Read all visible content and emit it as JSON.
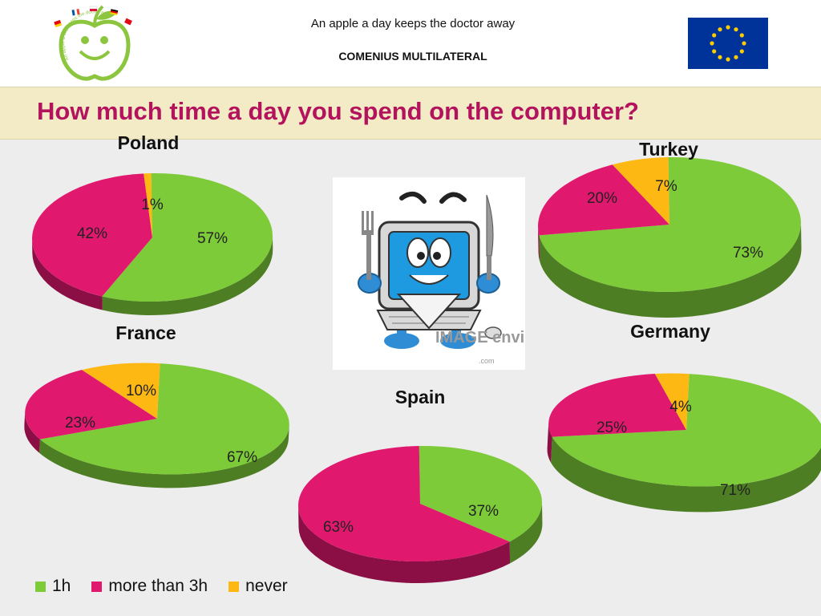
{
  "header": {
    "motto": "An apple a day keeps the doctor away",
    "project": "COMENIUS MULTILATERAL",
    "logo_arc_text": "An apple a day keeps the doctor away"
  },
  "question": "How much time a day you spend on the computer?",
  "colors": {
    "1h": "#7dcb38",
    "more than 3h": "#e0186e",
    "never": "#fdb813",
    "title": "#b3135d"
  },
  "legend": [
    "1h",
    "more than 3h",
    "never"
  ],
  "image": {
    "watermark": "IMAGE envision",
    "watermark_url": ".com"
  },
  "chart_data": [
    {
      "type": "pie",
      "title": "Poland",
      "categories": [
        "1h",
        "more than 3h",
        "never"
      ],
      "values": [
        57,
        42,
        1
      ],
      "labels": [
        "57%",
        "42%",
        "1%"
      ]
    },
    {
      "type": "pie",
      "title": "Turkey",
      "categories": [
        "1h",
        "more than 3h",
        "never"
      ],
      "values": [
        73,
        20,
        7
      ],
      "labels": [
        "73%",
        "20%",
        "7%"
      ]
    },
    {
      "type": "pie",
      "title": "France",
      "categories": [
        "1h",
        "more than 3h",
        "never"
      ],
      "values": [
        67,
        23,
        10
      ],
      "labels": [
        "67%",
        "23%",
        "10%"
      ]
    },
    {
      "type": "pie",
      "title": "Germany",
      "categories": [
        "1h",
        "more than 3h",
        "never"
      ],
      "values": [
        71,
        25,
        4
      ],
      "labels": [
        "71%",
        "25%",
        "4%"
      ]
    },
    {
      "type": "pie",
      "title": "Spain",
      "categories": [
        "1h",
        "more than 3h",
        "never"
      ],
      "values": [
        37,
        63,
        0
      ],
      "labels": [
        "37%",
        "63%",
        ""
      ]
    }
  ]
}
